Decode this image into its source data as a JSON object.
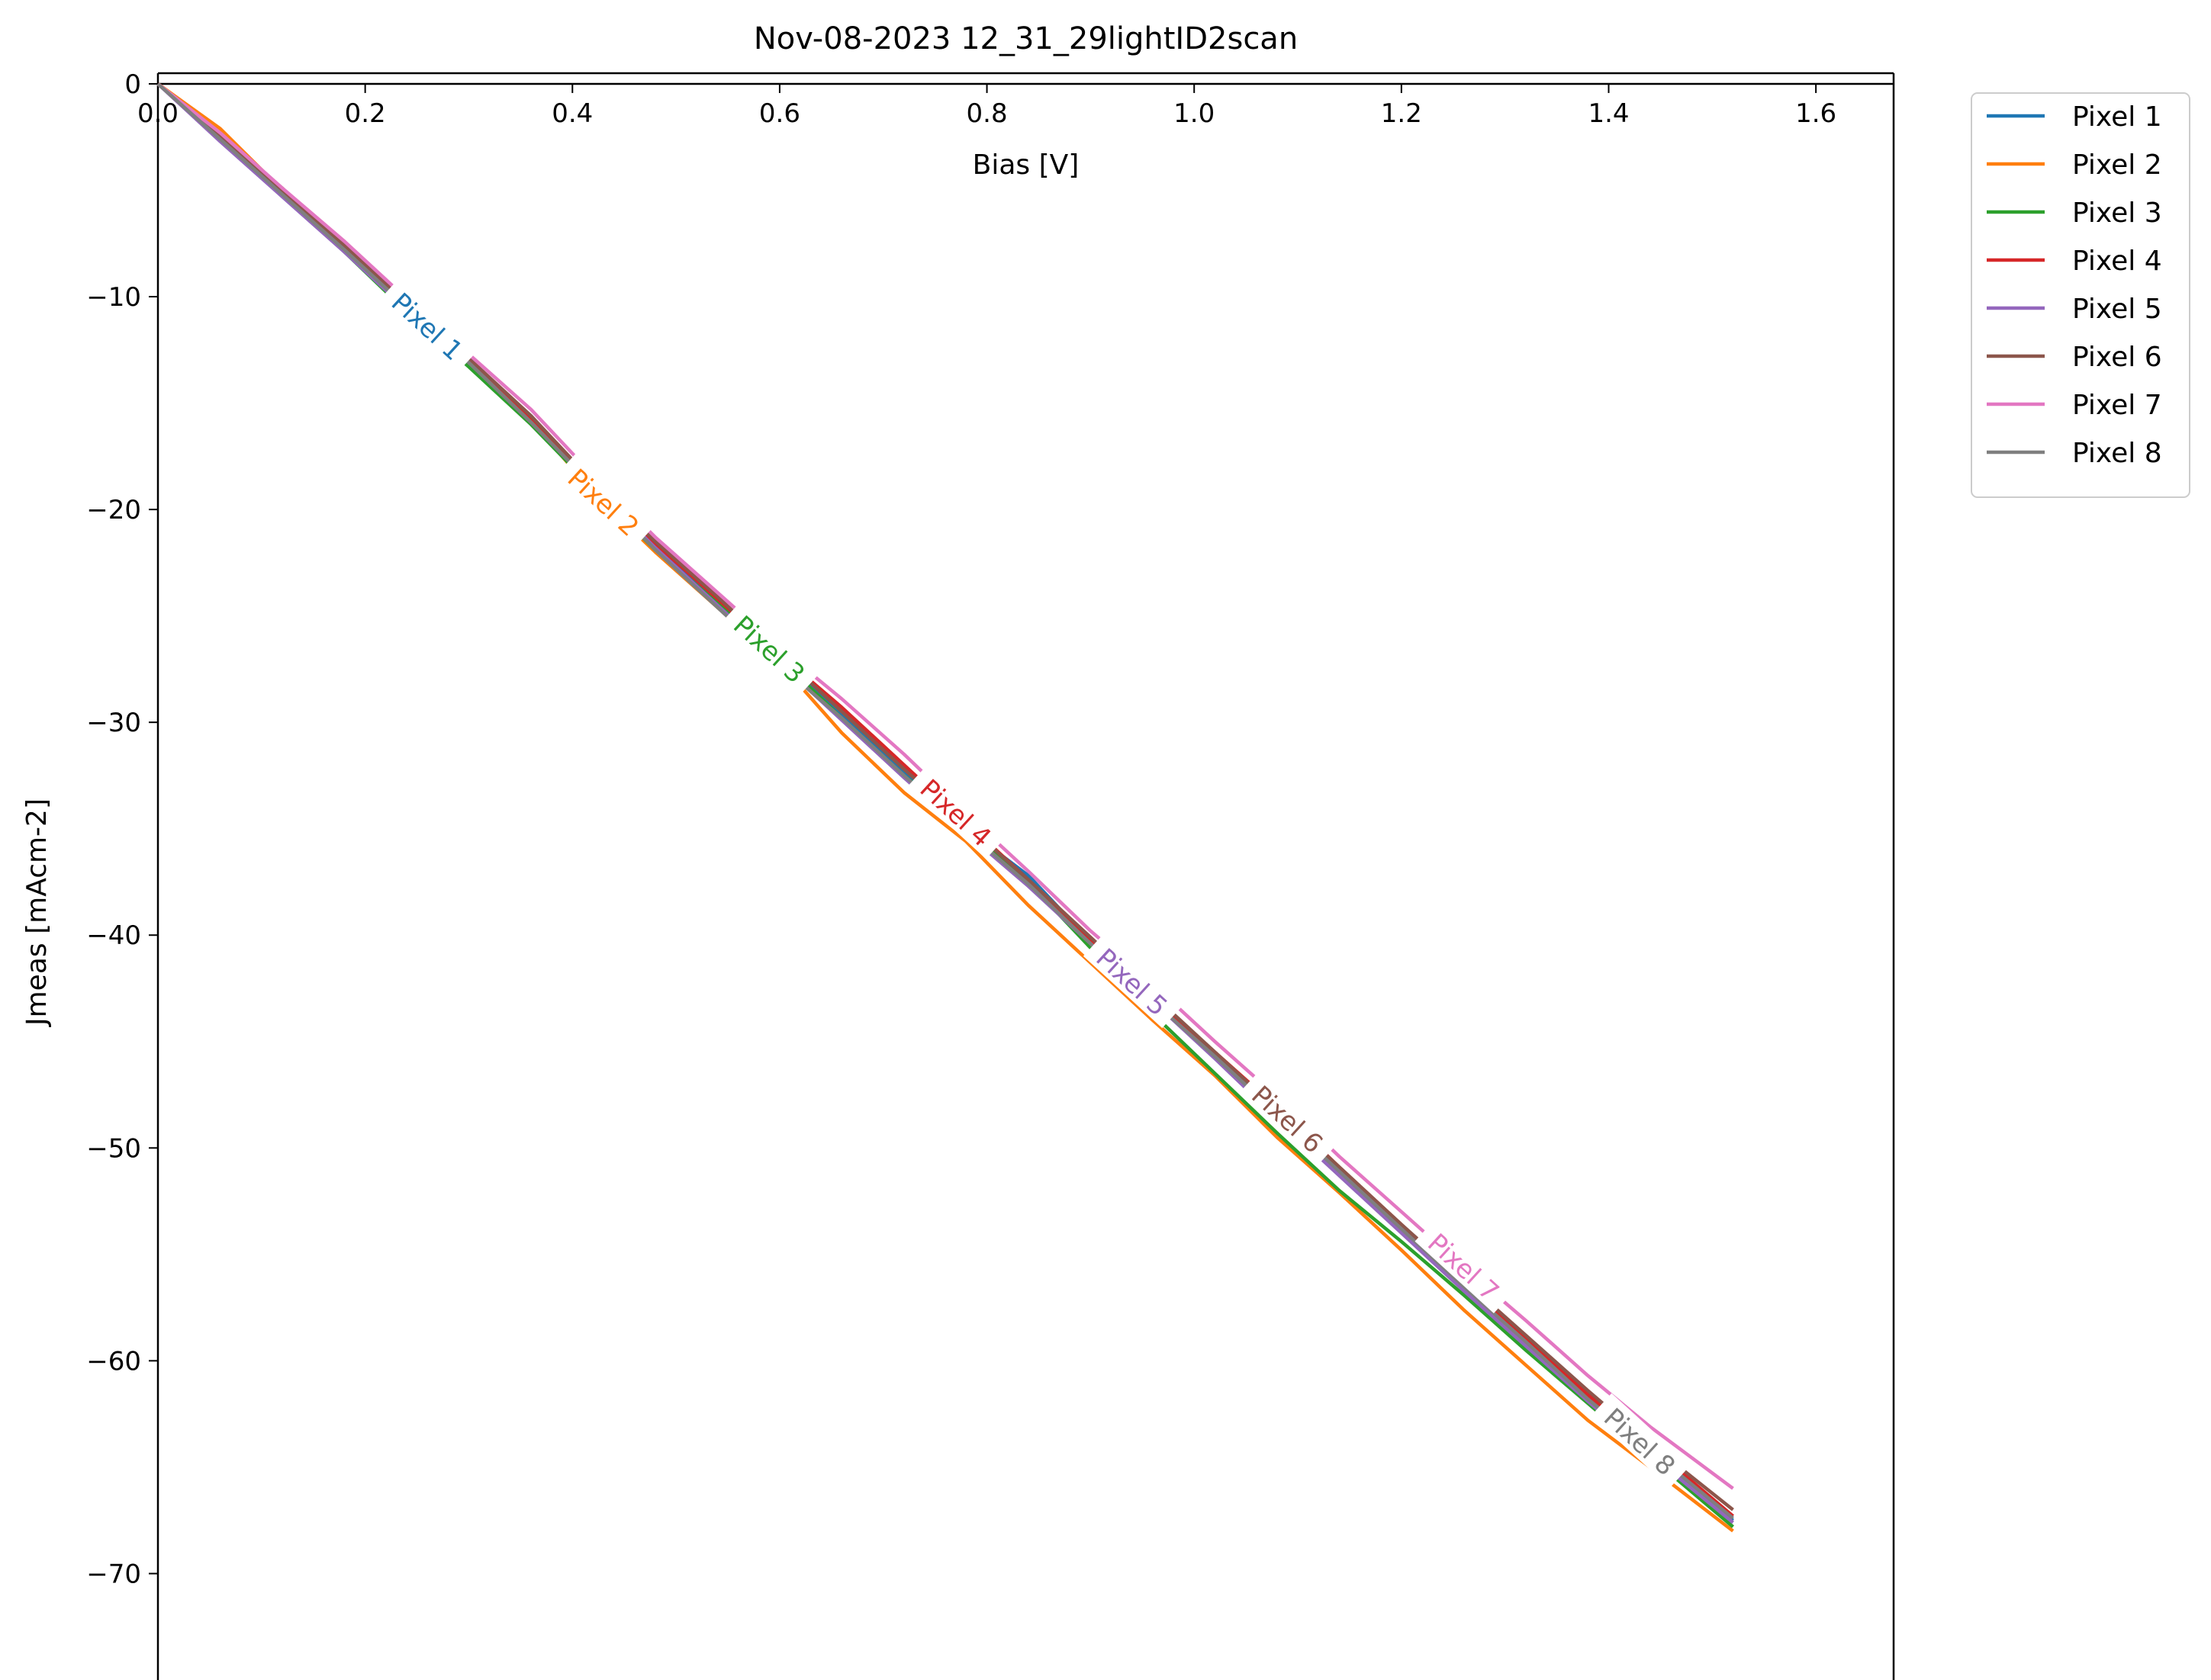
{
  "chart_data": {
    "type": "line",
    "title": "Nov-08-2023 12_31_29lightID2scan",
    "xlabel": "Bias [V]",
    "ylabel": "Jmeas [mAcm-2]",
    "xlim": [
      0.0,
      1.675
    ],
    "ylim": [
      -75,
      0.5
    ],
    "x_axis_position": "top",
    "grid": false,
    "legend_position": "outside-top-right",
    "xticks": [
      0.0,
      0.2,
      0.4,
      0.6,
      0.8,
      1.0,
      1.2,
      1.4,
      1.6
    ],
    "xtick_labels": [
      "0.0",
      "0.2",
      "0.4",
      "0.6",
      "0.8",
      "1.0",
      "1.2",
      "1.4",
      "1.6"
    ],
    "yticks": [
      0,
      -10,
      -20,
      -30,
      -40,
      -50,
      -60,
      -70
    ],
    "ytick_labels": [
      "0",
      "−10",
      "−20",
      "−30",
      "−40",
      "−50",
      "−60",
      "−70"
    ],
    "x": [
      0.0,
      0.06,
      0.12,
      0.18,
      0.24,
      0.3,
      0.36,
      0.42,
      0.48,
      0.54,
      0.6,
      0.66,
      0.72,
      0.78,
      0.84,
      0.9,
      0.96,
      1.02,
      1.08,
      1.14,
      1.2,
      1.26,
      1.32,
      1.38,
      1.44,
      1.52
    ],
    "series": [
      {
        "name": "Pixel 1",
        "color": "#1f77b4",
        "label_at_x": 0.26,
        "values": [
          0.0,
          -2.6,
          -5.1,
          -7.8,
          -10.6,
          -13.0,
          -15.6,
          -18.8,
          -21.7,
          -24.4,
          -27.0,
          -29.6,
          -32.4,
          -35.0,
          -37.2,
          -40.3,
          -43.0,
          -45.6,
          -48.4,
          -51.1,
          -53.8,
          -56.4,
          -59.0,
          -61.7,
          -64.2,
          -67.5
        ]
      },
      {
        "name": "Pixel 2",
        "color": "#ff7f0e",
        "label_at_x": 0.43,
        "values": [
          0.0,
          -2.1,
          -5.0,
          -7.6,
          -10.4,
          -13.2,
          -15.8,
          -19.2,
          -22.0,
          -24.6,
          -27.2,
          -30.5,
          -33.3,
          -35.6,
          -38.6,
          -41.3,
          -44.0,
          -46.6,
          -49.5,
          -52.1,
          -54.8,
          -57.6,
          -60.2,
          -62.8,
          -65.0,
          -68.0
        ]
      },
      {
        "name": "Pixel 3",
        "color": "#2ca02c",
        "label_at_x": 0.59,
        "values": [
          0.0,
          -2.5,
          -5.2,
          -7.9,
          -10.7,
          -13.3,
          -16.0,
          -19.0,
          -21.9,
          -24.4,
          -27.0,
          -29.8,
          -32.5,
          -34.9,
          -37.5,
          -40.6,
          -43.7,
          -46.5,
          -49.3,
          -52.0,
          -54.4,
          -56.9,
          -59.5,
          -62.0,
          -64.5,
          -67.8
        ]
      },
      {
        "name": "Pixel 4",
        "color": "#d62728",
        "label_at_x": 0.77,
        "values": [
          0.0,
          -2.5,
          -4.9,
          -7.7,
          -10.5,
          -13.0,
          -15.7,
          -18.8,
          -21.6,
          -24.2,
          -26.8,
          -29.3,
          -32.0,
          -34.7,
          -37.4,
          -40.2,
          -42.9,
          -45.5,
          -48.1,
          -50.9,
          -53.6,
          -56.3,
          -59.0,
          -61.6,
          -64.0,
          -67.3
        ]
      },
      {
        "name": "Pixel 5",
        "color": "#9467bd",
        "label_at_x": 0.94,
        "values": [
          0.0,
          -2.7,
          -5.3,
          -7.9,
          -10.6,
          -13.1,
          -15.9,
          -18.9,
          -21.8,
          -24.5,
          -27.2,
          -29.9,
          -32.6,
          -35.2,
          -37.7,
          -40.4,
          -43.1,
          -45.8,
          -48.6,
          -51.3,
          -54.0,
          -56.7,
          -59.3,
          -61.9,
          -64.4,
          -67.6
        ]
      },
      {
        "name": "Pixel 6",
        "color": "#8c564b",
        "label_at_x": 1.09,
        "values": [
          0.0,
          -2.4,
          -5.0,
          -7.6,
          -10.3,
          -12.9,
          -15.6,
          -18.7,
          -21.5,
          -24.1,
          -26.8,
          -29.5,
          -32.2,
          -34.8,
          -37.4,
          -40.1,
          -42.8,
          -45.5,
          -48.2,
          -50.9,
          -53.6,
          -56.2,
          -58.8,
          -61.4,
          -63.9,
          -67.0
        ]
      },
      {
        "name": "Pixel 7",
        "color": "#e377c2",
        "label_at_x": 1.26,
        "values": [
          0.0,
          -2.3,
          -4.9,
          -7.4,
          -10.1,
          -12.7,
          -15.3,
          -18.4,
          -21.3,
          -23.9,
          -26.5,
          -28.9,
          -31.5,
          -34.3,
          -37.0,
          -39.8,
          -42.3,
          -45.0,
          -47.6,
          -50.4,
          -53.0,
          -55.6,
          -58.1,
          -60.7,
          -63.1,
          -66.0
        ]
      },
      {
        "name": "Pixel 8",
        "color": "#7f7f7f",
        "label_at_x": 1.43,
        "values": [
          0.0,
          -2.6,
          -5.2,
          -7.8,
          -10.5,
          -13.1,
          -15.9,
          -18.9,
          -21.9,
          -24.6,
          -27.3,
          -29.8,
          -32.5,
          -35.1,
          -37.6,
          -40.4,
          -43.1,
          -45.7,
          -48.4,
          -51.1,
          -53.8,
          -56.5,
          -59.1,
          -61.8,
          -64.2,
          -67.4
        ]
      }
    ]
  }
}
